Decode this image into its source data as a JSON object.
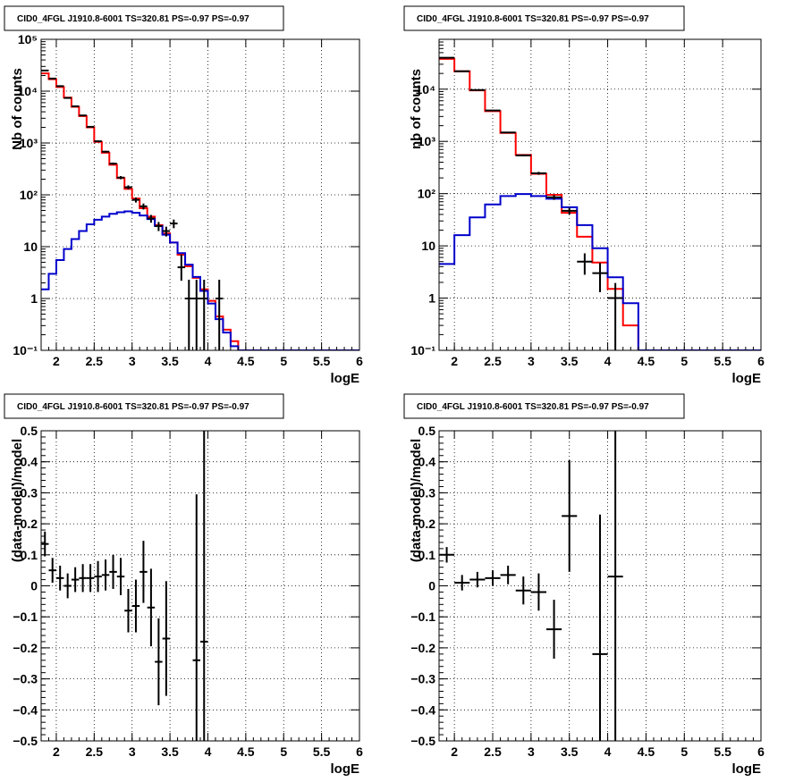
{
  "page_title": "",
  "colors": {
    "data": "#000000",
    "model_total": "#ff0000",
    "model_component": "#0000cc"
  },
  "chart_data": [
    {
      "type": "line",
      "title": "CID0_4FGL J1910.8-6001 TS=320.81 PS=-0.97 PS=-0.97",
      "xlabel": "logE",
      "ylabel": "Nb of counts",
      "yscale": "log",
      "xlim": [
        1.8,
        6
      ],
      "ylim": [
        0.1,
        100000
      ],
      "grid": true,
      "x_ticks": [
        "2",
        "2.5",
        "3",
        "3.5",
        "4",
        "4.5",
        "5",
        "5.5",
        "6"
      ],
      "y_ticks": [
        "10⁻¹",
        "1",
        "10",
        "10²",
        "10³",
        "10⁴",
        "10⁵"
      ],
      "bin_width": 0.1,
      "series": [
        {
          "kind": "step",
          "color": "#ff0000",
          "x_edges": [
            1.8,
            1.9,
            2.0,
            2.1,
            2.2,
            2.3,
            2.4,
            2.5,
            2.6,
            2.7,
            2.8,
            2.9,
            3.0,
            3.1,
            3.2,
            3.3,
            3.4,
            3.5,
            3.6,
            3.7,
            3.8,
            3.9,
            4.0,
            4.1,
            4.2,
            4.3,
            4.4,
            4.5,
            4.6,
            4.7,
            4.8,
            4.9,
            5.0,
            5.1,
            5.2,
            5.3,
            5.4,
            5.5,
            5.6,
            5.7,
            5.8,
            5.9,
            6.0
          ],
          "values": [
            22000,
            17000,
            12000,
            7500,
            5000,
            3300,
            2000,
            1050,
            650,
            380,
            210,
            130,
            85,
            55,
            38,
            26,
            18,
            12,
            7,
            4.2,
            2.5,
            1.5,
            0.9,
            0.45,
            0.25,
            0.15,
            0.1,
            0.1,
            0.1,
            0.1,
            0.1,
            0.1,
            0.1,
            0.1,
            0.1,
            0.1,
            0.1,
            0.1,
            0.1,
            0.1,
            0.1,
            0.1
          ]
        },
        {
          "kind": "step",
          "color": "#0000cc",
          "x_edges": [
            1.8,
            1.9,
            2.0,
            2.1,
            2.2,
            2.3,
            2.4,
            2.5,
            2.6,
            2.7,
            2.8,
            2.9,
            3.0,
            3.1,
            3.2,
            3.3,
            3.4,
            3.5,
            3.6,
            3.7,
            3.8,
            3.9,
            4.0,
            4.1,
            4.2,
            4.3,
            4.4,
            4.5,
            4.6,
            4.7,
            4.8,
            4.9,
            5.0,
            5.1,
            5.2,
            5.3,
            5.4,
            5.5,
            5.6,
            5.7,
            5.8,
            5.9,
            6.0
          ],
          "values": [
            1.5,
            3.0,
            5.5,
            9.0,
            14,
            20,
            27,
            33,
            38,
            43,
            46,
            48,
            45,
            40,
            34,
            25,
            17,
            12,
            7.5,
            4.5,
            2.6,
            1.4,
            0.8,
            0.4,
            0.22,
            0.12,
            0.1,
            0.1,
            0.1,
            0.1,
            0.1,
            0.1,
            0.1,
            0.1,
            0.1,
            0.1,
            0.1,
            0.1,
            0.1,
            0.1,
            0.1,
            0.1
          ]
        },
        {
          "kind": "points",
          "color": "#000000",
          "x": [
            1.85,
            1.95,
            2.05,
            2.15,
            2.25,
            2.35,
            2.45,
            2.55,
            2.65,
            2.75,
            2.85,
            2.95,
            3.05,
            3.15,
            3.25,
            3.35,
            3.45,
            3.55,
            3.65,
            3.75,
            3.85,
            3.95,
            4.15
          ],
          "values": [
            25000,
            17500,
            12500,
            7400,
            5100,
            3400,
            2050,
            1080,
            680,
            400,
            215,
            140,
            80,
            60,
            35,
            25,
            20,
            28,
            4,
            1,
            1,
            1,
            1
          ],
          "yerr_low": [
            160,
            130,
            110,
            85,
            70,
            58,
            45,
            33,
            26,
            20,
            15,
            12,
            9,
            8,
            6,
            5,
            4.3,
            5.3,
            1.8,
            0.95,
            0.95,
            0.95,
            0.95
          ],
          "yerr_high": [
            160,
            130,
            110,
            85,
            70,
            58,
            45,
            33,
            26,
            20,
            15,
            12,
            9,
            8,
            6,
            5,
            4.3,
            5.3,
            3.0,
            1.3,
            1.3,
            1.3,
            1.3
          ]
        }
      ]
    },
    {
      "type": "line",
      "title": "CID0_4FGL J1910.8-6001 TS=320.81 PS=-0.97 PS=-0.97",
      "xlabel": "logE",
      "ylabel": "nb of counts",
      "yscale": "log",
      "xlim": [
        1.8,
        6
      ],
      "ylim": [
        0.1,
        90000
      ],
      "grid": true,
      "x_ticks": [
        "2",
        "2.5",
        "3",
        "3.5",
        "4",
        "4.5",
        "5",
        "5.5",
        "6"
      ],
      "y_ticks": [
        "10⁻¹",
        "1",
        "10",
        "10²",
        "10³",
        "10⁴"
      ],
      "bin_width": 0.2,
      "series": [
        {
          "kind": "step",
          "color": "#ff0000",
          "x_edges": [
            1.8,
            2.0,
            2.2,
            2.4,
            2.6,
            2.8,
            3.0,
            3.2,
            3.4,
            3.6,
            3.8,
            4.0,
            4.2,
            4.4,
            4.6,
            4.8,
            5.0,
            5.2,
            5.4,
            5.6,
            5.8,
            6.0
          ],
          "values": [
            38000,
            22000,
            9500,
            3800,
            1450,
            550,
            240,
            95,
            43,
            15,
            4.8,
            1.5,
            0.3,
            0.1,
            0.1,
            0.1,
            0.1,
            0.1,
            0.1,
            0.1,
            0.1
          ]
        },
        {
          "kind": "step",
          "color": "#0000cc",
          "x_edges": [
            1.8,
            2.0,
            2.2,
            2.4,
            2.6,
            2.8,
            3.0,
            3.2,
            3.4,
            3.6,
            3.8,
            4.0,
            4.2,
            4.4,
            4.6,
            4.8,
            5.0,
            5.2,
            5.4,
            5.6,
            5.8,
            6.0
          ],
          "values": [
            4.5,
            16,
            35,
            62,
            90,
            98,
            90,
            80,
            55,
            25,
            9,
            2.5,
            0.8,
            0.1,
            0.1,
            0.1,
            0.1,
            0.1,
            0.1,
            0.1,
            0.1
          ]
        },
        {
          "kind": "points",
          "color": "#000000",
          "x": [
            1.9,
            2.1,
            2.3,
            2.5,
            2.7,
            2.9,
            3.1,
            3.3,
            3.5,
            3.7,
            3.9,
            4.1
          ],
          "values": [
            40000,
            22000,
            9600,
            3900,
            1480,
            540,
            245,
            85,
            47,
            5,
            3,
            1
          ],
          "yerr_low": [
            200,
            150,
            100,
            62,
            38,
            23,
            16,
            9,
            7,
            2.2,
            1.7,
            0.95
          ],
          "yerr_high": [
            200,
            150,
            100,
            62,
            38,
            23,
            16,
            9,
            7,
            2.2,
            1.7,
            0.95
          ]
        }
      ]
    },
    {
      "type": "scatter",
      "title": "CID0_4FGL J1910.8-6001 TS=320.81 PS=-0.97 PS=-0.97",
      "xlabel": "logE",
      "ylabel": "(data-model)/model",
      "xlim": [
        1.8,
        6
      ],
      "ylim": [
        -0.5,
        0.5
      ],
      "grid": true,
      "x_ticks": [
        "2",
        "2.5",
        "3",
        "3.5",
        "4",
        "4.5",
        "5",
        "5.5",
        "6"
      ],
      "y_ticks": [
        "−0.5",
        "−0.4",
        "−0.3",
        "−0.2",
        "−0.1",
        "0",
        "0.1",
        "0.2",
        "0.3",
        "0.4",
        "0.5"
      ],
      "bin_width": 0.1,
      "series": [
        {
          "kind": "points",
          "color": "#000000",
          "x": [
            1.85,
            1.95,
            2.05,
            2.15,
            2.25,
            2.35,
            2.45,
            2.55,
            2.65,
            2.75,
            2.85,
            2.95,
            3.05,
            3.15,
            3.25,
            3.35,
            3.45,
            3.85,
            3.95
          ],
          "values": [
            0.135,
            0.05,
            0.025,
            0.0,
            0.02,
            0.025,
            0.025,
            0.03,
            0.035,
            0.045,
            0.03,
            -0.08,
            -0.065,
            0.045,
            -0.07,
            -0.245,
            -0.17,
            -0.24,
            -0.18
          ],
          "yerr_low": [
            0.04,
            0.04,
            0.04,
            0.04,
            0.04,
            0.045,
            0.045,
            0.05,
            0.05,
            0.055,
            0.06,
            0.07,
            0.085,
            0.1,
            0.125,
            0.14,
            0.185,
            0.6,
            0.6
          ],
          "yerr_high": [
            0.04,
            0.04,
            0.04,
            0.04,
            0.04,
            0.045,
            0.045,
            0.05,
            0.05,
            0.055,
            0.06,
            0.07,
            0.085,
            0.1,
            0.125,
            0.14,
            0.185,
            0.535,
            0.68
          ]
        }
      ]
    },
    {
      "type": "scatter",
      "title": "CID0_4FGL J1910.8-6001 TS=320.81 PS=-0.97 PS=-0.97",
      "xlabel": "logE",
      "ylabel": "(data-model)/model",
      "xlim": [
        1.8,
        6
      ],
      "ylim": [
        -0.5,
        0.5
      ],
      "grid": true,
      "x_ticks": [
        "2",
        "2.5",
        "3",
        "3.5",
        "4",
        "4.5",
        "5",
        "5.5",
        "6"
      ],
      "y_ticks": [
        "−0.5",
        "−0.4",
        "−0.3",
        "−0.2",
        "−0.1",
        "0",
        "0.1",
        "0.2",
        "0.3",
        "0.4",
        "0.5"
      ],
      "bin_width": 0.2,
      "series": [
        {
          "kind": "points",
          "color": "#000000",
          "x": [
            1.9,
            2.1,
            2.3,
            2.5,
            2.7,
            2.9,
            3.1,
            3.3,
            3.5,
            3.9,
            4.1
          ],
          "values": [
            0.1,
            0.01,
            0.02,
            0.025,
            0.035,
            -0.015,
            -0.02,
            -0.14,
            0.225,
            -0.22,
            0.03
          ],
          "yerr_low": [
            0.025,
            0.025,
            0.025,
            0.025,
            0.03,
            0.045,
            0.06,
            0.095,
            0.18,
            0.45,
            0.6
          ],
          "yerr_high": [
            0.025,
            0.025,
            0.025,
            0.025,
            0.03,
            0.045,
            0.06,
            0.095,
            0.18,
            0.45,
            0.5
          ]
        }
      ]
    }
  ]
}
